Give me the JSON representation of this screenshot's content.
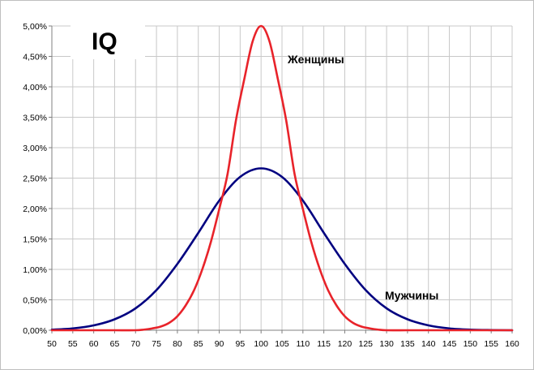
{
  "chart_data": {
    "type": "line",
    "title": "IQ",
    "xlabel": "",
    "ylabel": "",
    "xlim": [
      50,
      160
    ],
    "ylim": [
      0,
      0.05
    ],
    "x_ticks": [
      "50",
      "55",
      "60",
      "65",
      "70",
      "75",
      "80",
      "85",
      "90",
      "95",
      "100",
      "105",
      "110",
      "115",
      "120",
      "125",
      "130",
      "135",
      "140",
      "145",
      "150",
      "155",
      "160"
    ],
    "y_ticks": [
      "0,00%",
      "0,50%",
      "1,00%",
      "1,50%",
      "2,00%",
      "2,50%",
      "3,00%",
      "3,50%",
      "4,00%",
      "4,50%",
      "5,00%"
    ],
    "grid": true,
    "legend": "none",
    "series": [
      {
        "name": "Женщины",
        "color": "#e8232a",
        "x": [
          50,
          55,
          60,
          65,
          70,
          72,
          74,
          76,
          78,
          80,
          82,
          84,
          86,
          88,
          90,
          92,
          94,
          96,
          98,
          100,
          102,
          104,
          106,
          108,
          110,
          112,
          114,
          116,
          118,
          120,
          122,
          124,
          126,
          128,
          130,
          135,
          140,
          150,
          160
        ],
        "y": [
          0,
          0,
          0,
          0,
          0,
          0.0001,
          0.0003,
          0.0006,
          0.0012,
          0.0023,
          0.0041,
          0.0066,
          0.0101,
          0.0145,
          0.0199,
          0.0257,
          0.0345,
          0.0413,
          0.0475,
          0.05,
          0.0475,
          0.0413,
          0.0345,
          0.0257,
          0.0199,
          0.0145,
          0.0101,
          0.0066,
          0.0041,
          0.0023,
          0.0012,
          0.0006,
          0.0003,
          0.0001,
          0,
          0,
          0,
          0,
          0
        ]
      },
      {
        "name": "Мужчины",
        "color": "#000080",
        "x": [
          50,
          55,
          60,
          65,
          70,
          75,
          80,
          85,
          90,
          95,
          100,
          105,
          110,
          115,
          120,
          125,
          130,
          135,
          140,
          145,
          150,
          155,
          160
        ],
        "y": [
          0.0001,
          0.0003,
          0.0008,
          0.0018,
          0.0036,
          0.0066,
          0.0109,
          0.016,
          0.0213,
          0.0252,
          0.0266,
          0.0252,
          0.0213,
          0.016,
          0.0109,
          0.0066,
          0.0036,
          0.0018,
          0.0008,
          0.0003,
          0.0001,
          3e-05,
          0
        ]
      }
    ]
  }
}
